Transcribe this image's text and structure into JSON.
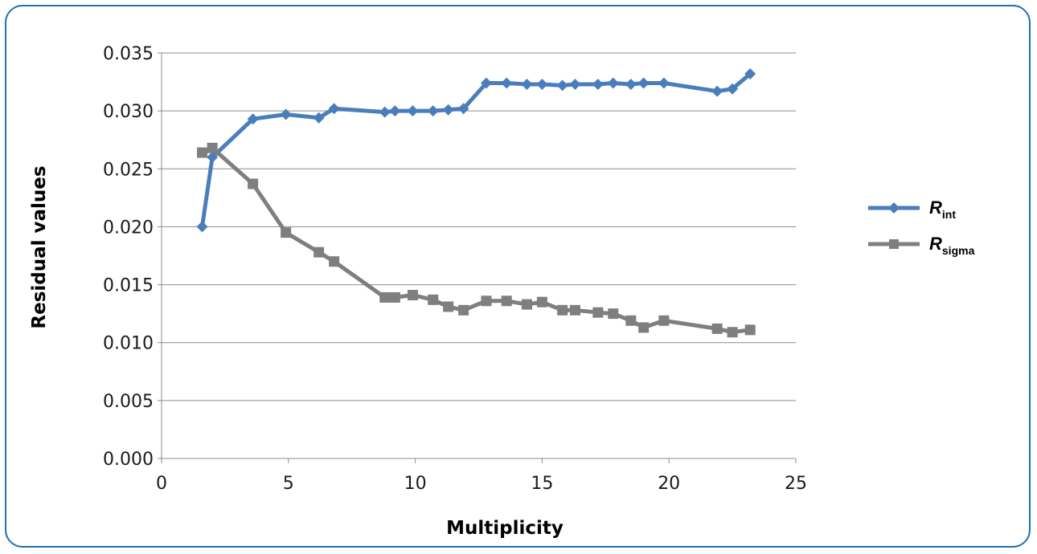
{
  "chart_data": {
    "type": "line",
    "xlabel": "Multiplicity",
    "ylabel": "Residual values",
    "xlim": [
      0,
      25
    ],
    "ylim": [
      0,
      0.035
    ],
    "x_ticks": [
      "0",
      "5",
      "10",
      "15",
      "20",
      "25"
    ],
    "y_ticks": [
      "0.000",
      "0.005",
      "0.010",
      "0.015",
      "0.020",
      "0.025",
      "0.030",
      "0.035"
    ],
    "grid": "horizontal",
    "legend_position": "right",
    "series": [
      {
        "name": "R",
        "name_subscript": "int",
        "color": "#4a7ebb",
        "marker": "diamond",
        "x": [
          1.6,
          2.0,
          3.6,
          4.9,
          6.2,
          6.8,
          8.8,
          9.2,
          9.9,
          10.7,
          11.3,
          11.9,
          12.8,
          13.6,
          14.4,
          15.0,
          15.8,
          16.3,
          17.2,
          17.8,
          18.5,
          19.0,
          19.8,
          21.9,
          22.5,
          23.2
        ],
        "y": [
          0.02,
          0.026,
          0.0293,
          0.0297,
          0.0294,
          0.0302,
          0.0299,
          0.03,
          0.03,
          0.03,
          0.0301,
          0.0302,
          0.0324,
          0.0324,
          0.0323,
          0.0323,
          0.0322,
          0.0323,
          0.0323,
          0.0324,
          0.0323,
          0.0324,
          0.0324,
          0.0317,
          0.0319,
          0.0332
        ]
      },
      {
        "name": "R",
        "name_subscript": "sigma",
        "color": "#7f7f7f",
        "marker": "square",
        "x": [
          1.6,
          2.0,
          3.6,
          4.9,
          6.2,
          6.8,
          8.8,
          9.2,
          9.9,
          10.7,
          11.3,
          11.9,
          12.8,
          13.6,
          14.4,
          15.0,
          15.8,
          16.3,
          17.2,
          17.8,
          18.5,
          19.0,
          19.8,
          21.9,
          22.5,
          23.2
        ],
        "y": [
          0.0264,
          0.0268,
          0.0237,
          0.0195,
          0.0178,
          0.017,
          0.0139,
          0.0139,
          0.0141,
          0.0137,
          0.0131,
          0.0128,
          0.0136,
          0.0136,
          0.0133,
          0.0135,
          0.0128,
          0.0128,
          0.0126,
          0.0125,
          0.0119,
          0.0113,
          0.0119,
          0.0112,
          0.0109,
          0.0111
        ]
      }
    ]
  }
}
